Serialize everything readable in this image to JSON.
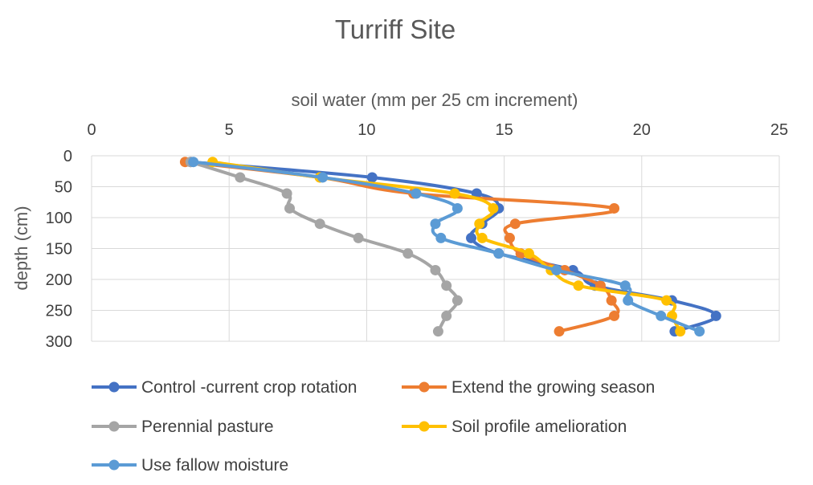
{
  "chart_data": {
    "type": "line",
    "title": "Turriff Site",
    "xlabel": "soil water (mm per 25 cm increment)",
    "ylabel": "depth (cm)",
    "xlim": [
      0,
      25
    ],
    "ylim": [
      0,
      300
    ],
    "x_ticks": [
      0,
      5,
      10,
      15,
      20,
      25
    ],
    "y_ticks": [
      0,
      50,
      100,
      150,
      200,
      250,
      300
    ],
    "y_inverted": true,
    "x_axis_position": "top",
    "grid": true,
    "legend_position": "bottom",
    "series": [
      {
        "name": "Control -current crop rotation",
        "color": "#4472C4",
        "points": [
          [
            3.6,
            10
          ],
          [
            10.2,
            35
          ],
          [
            14,
            61
          ],
          [
            14.8,
            85
          ],
          [
            14.2,
            110
          ],
          [
            13.8,
            133
          ],
          [
            14.8,
            158
          ],
          [
            17.5,
            185
          ],
          [
            18.3,
            210
          ],
          [
            21.1,
            234
          ],
          [
            22.7,
            259
          ],
          [
            21.2,
            284
          ]
        ]
      },
      {
        "name": "Extend the growing season",
        "color": "#ED7D31",
        "points": [
          [
            3.4,
            10
          ],
          [
            8.3,
            35
          ],
          [
            11.7,
            61
          ],
          [
            19,
            85
          ],
          [
            15.4,
            110
          ],
          [
            15.2,
            133
          ],
          [
            15.6,
            158
          ],
          [
            17.2,
            185
          ],
          [
            18.5,
            210
          ],
          [
            18.9,
            234
          ],
          [
            19,
            259
          ],
          [
            17,
            284
          ]
        ]
      },
      {
        "name": "Perennial pasture",
        "color": "#A5A5A5",
        "points": [
          [
            3.6,
            10
          ],
          [
            5.4,
            35
          ],
          [
            7.1,
            61
          ],
          [
            7.2,
            85
          ],
          [
            8.3,
            110
          ],
          [
            9.7,
            133
          ],
          [
            11.5,
            158
          ],
          [
            12.5,
            185
          ],
          [
            12.9,
            210
          ],
          [
            13.3,
            234
          ],
          [
            12.9,
            259
          ],
          [
            12.6,
            284
          ]
        ]
      },
      {
        "name": "Soil profile amelioration",
        "color": "#FFC000",
        "points": [
          [
            4.4,
            10
          ],
          [
            8.3,
            35
          ],
          [
            13.2,
            61
          ],
          [
            14.6,
            85
          ],
          [
            14.1,
            110
          ],
          [
            14.2,
            133
          ],
          [
            15.9,
            158
          ],
          [
            16.7,
            185
          ],
          [
            17.7,
            210
          ],
          [
            20.9,
            234
          ],
          [
            21.1,
            259
          ],
          [
            21.4,
            284
          ]
        ]
      },
      {
        "name": "Use fallow moisture",
        "color": "#5B9BD5",
        "points": [
          [
            3.7,
            10
          ],
          [
            8.4,
            35
          ],
          [
            11.8,
            61
          ],
          [
            13.3,
            85
          ],
          [
            12.5,
            110
          ],
          [
            12.7,
            133
          ],
          [
            14.8,
            158
          ],
          [
            16.9,
            185
          ],
          [
            19.4,
            210
          ],
          [
            19.5,
            234
          ],
          [
            20.7,
            259
          ],
          [
            22.1,
            284
          ]
        ]
      }
    ]
  }
}
